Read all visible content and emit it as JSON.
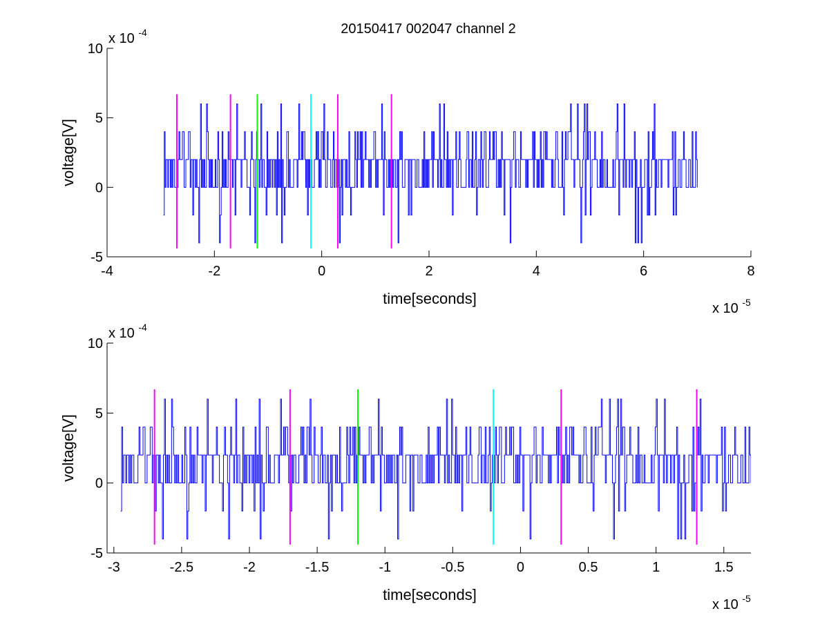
{
  "figure": {
    "title": "20150417 002047 channel 2"
  },
  "chart_data": [
    {
      "type": "line",
      "xlabel": "time[seconds]",
      "ylabel": "voltage[V]",
      "x_multiplier": "x 10",
      "x_exponent": "-5",
      "y_multiplier": "x 10",
      "y_exponent": "-4",
      "xlim": [
        -4e-05,
        8e-05
      ],
      "ylim": [
        -0.0005,
        0.001
      ],
      "xticks": [
        -4e-05,
        -2e-05,
        0,
        2e-05,
        4e-05,
        6e-05,
        8e-05
      ],
      "xtick_labels": [
        "-4",
        "-2",
        "0",
        "2",
        "4",
        "6",
        "8"
      ],
      "yticks": [
        -0.0005,
        0,
        0.0005,
        0.001
      ],
      "ytick_labels": [
        "-5",
        "0",
        "5",
        "10"
      ],
      "signal": {
        "color": "#0000ff",
        "x_start": -2.95e-05,
        "x_end": 7e-05,
        "y_levels_V": [
          -0.0004,
          -0.0002,
          0,
          0.0002,
          0.0004,
          0.0006
        ]
      },
      "markers": [
        {
          "x": -2.7e-05,
          "color": "#ff00ff"
        },
        {
          "x": -1.7e-05,
          "color": "#ff00ff"
        },
        {
          "x": -1.2e-05,
          "color": "#00ff00"
        },
        {
          "x": -2e-06,
          "color": "#00ffff"
        },
        {
          "x": 3e-06,
          "color": "#ff00ff"
        },
        {
          "x": 1.3e-05,
          "color": "#ff00ff"
        }
      ],
      "marker_y_range": [
        -0.00044,
        0.00067
      ]
    },
    {
      "type": "line",
      "xlabel": "time[seconds]",
      "ylabel": "voltage[V]",
      "x_multiplier": "x 10",
      "x_exponent": "-5",
      "y_multiplier": "x 10",
      "y_exponent": "-4",
      "xlim": [
        -3.05e-05,
        1.7e-05
      ],
      "ylim": [
        -0.0005,
        0.001
      ],
      "xticks": [
        -3e-05,
        -2.5e-05,
        -2e-05,
        -1.5e-05,
        -1e-05,
        -5e-06,
        0,
        5e-06,
        1e-05,
        1.5e-05
      ],
      "xtick_labels": [
        "-3",
        "-2.5",
        "-2",
        "-1.5",
        "-1",
        "-0.5",
        "0",
        "0.5",
        "1",
        "1.5"
      ],
      "yticks": [
        -0.0005,
        0,
        0.0005,
        0.001
      ],
      "ytick_labels": [
        "-5",
        "0",
        "5",
        "10"
      ],
      "signal": {
        "color": "#0000ff",
        "x_start": -2.95e-05,
        "x_end": 1.7e-05,
        "y_levels_V": [
          -0.0004,
          -0.0002,
          0,
          0.0002,
          0.0004,
          0.0006
        ]
      },
      "markers": [
        {
          "x": -2.7e-05,
          "color": "#ff00ff"
        },
        {
          "x": -1.7e-05,
          "color": "#ff00ff"
        },
        {
          "x": -1.2e-05,
          "color": "#00ff00"
        },
        {
          "x": -2e-06,
          "color": "#00ffff"
        },
        {
          "x": 3e-06,
          "color": "#ff00ff"
        },
        {
          "x": 1.3e-05,
          "color": "#ff00ff"
        }
      ],
      "marker_y_range": [
        -0.00044,
        0.00067
      ]
    }
  ]
}
